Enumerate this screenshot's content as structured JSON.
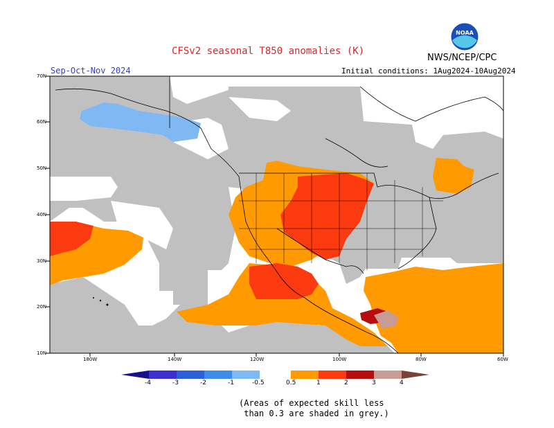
{
  "header": {
    "title": "CFSv2 seasonal T850 anomalies (K)",
    "season": "Sep-Oct-Nov 2024",
    "initial_conditions": "Initial conditions: 1Aug2024-10Aug2024",
    "agency": "NWS/NCEP/CPC",
    "logo_text": "NOAA"
  },
  "map": {
    "lat_labels": [
      "70N",
      "60N",
      "50N",
      "40N",
      "30N",
      "20N",
      "10N"
    ],
    "lon_labels": [
      "180W",
      "140W",
      "120W",
      "100W",
      "80W",
      "60W"
    ]
  },
  "colorbar": {
    "labels": [
      "-4",
      "-3",
      "-2",
      "-1",
      "-0.5",
      "0.5",
      "1",
      "2",
      "3",
      "4"
    ],
    "colors": {
      "below_4": "#1a0f8a",
      "m4_m3": "#3e2fcf",
      "m3_m2": "#2a5fd6",
      "m2_m1": "#3c8ce8",
      "m1_m05": "#7fb8f2",
      "p05_p1": "#ff9a00",
      "p1_p2": "#fb3a0f",
      "p2_p3": "#b60e0e",
      "p3_p4": "#c79c92",
      "above_4": "#7a4236"
    }
  },
  "colors": {
    "grey_noskill": "#c0c0c0",
    "orange": "#ff9a00",
    "red": "#fb3a0f",
    "darkred": "#b60e0e",
    "lightblue": "#7fb8f2"
  },
  "footnote": {
    "line1": "(Areas of expected skill less",
    "line2": " than 0.3 are shaded in grey.)"
  }
}
